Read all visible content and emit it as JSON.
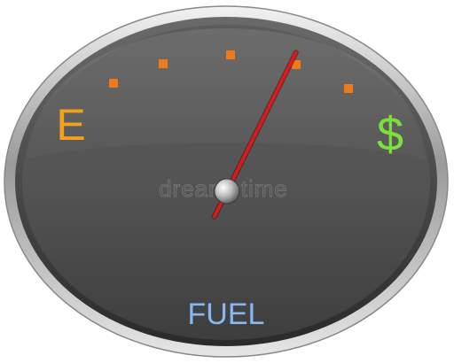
{
  "gauge": {
    "empty_label": "E",
    "full_label": "$",
    "caption": "FUEL",
    "watermark": "dreamstime",
    "needle_level": 0.72,
    "tick_count": 5,
    "colors": {
      "empty_label": "#f2a21a",
      "full_label": "#7de03a",
      "caption": "#86b8f2",
      "tick": "#f07a1a",
      "needle": "#d81a1a",
      "face": "#5a5a5a",
      "bezel": "#b8b8b8"
    }
  }
}
